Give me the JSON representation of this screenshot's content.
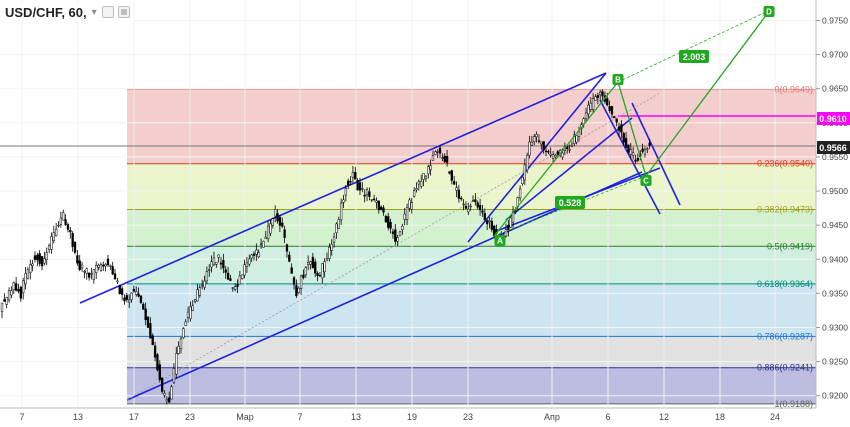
{
  "header": {
    "title": "USD/CHF, 60,",
    "menu_icon": "chevron-down-icon",
    "buttons": [
      "square-icon",
      "box-icon"
    ]
  },
  "colors": {
    "candle": "#000000",
    "channel": "#2020e0",
    "pattern": "#21a821",
    "resistance": "#ff00ff",
    "fib_line": "#999999"
  },
  "chart_data": {
    "type": "candlestick",
    "title": "USD/CHF, 60,",
    "price_axis": {
      "ticks": [
        "0.9750",
        "0.9700",
        "0.9650",
        "0.9600",
        "0.9550",
        "0.9500",
        "0.9450",
        "0.9400",
        "0.9350",
        "0.9300",
        "0.9250",
        "0.9200"
      ],
      "ylim": [
        0.9182,
        0.978
      ]
    },
    "time_axis": {
      "ticks": [
        "7",
        "13",
        "17",
        "23",
        "Мар",
        "7",
        "13",
        "19",
        "23",
        "Апр",
        "6",
        "12",
        "18",
        "24"
      ]
    },
    "current_price": "0.9566",
    "resistance_label": "0.9610",
    "fibonacci": {
      "high": 0.9649,
      "low": 0.9188,
      "levels": [
        {
          "ratio": 0,
          "value": 0.9649,
          "label": "0(0.9649)",
          "color": "#e57373"
        },
        {
          "ratio": 0.236,
          "value": 0.954,
          "label": "0.236(0.9540)",
          "color": "#d84315"
        },
        {
          "ratio": 0.382,
          "value": 0.9473,
          "label": "0.382(0.9473)",
          "color": "#9e9d24"
        },
        {
          "ratio": 0.5,
          "value": 0.9419,
          "label": "0.5(0.9419)",
          "color": "#2e7d32"
        },
        {
          "ratio": 0.618,
          "value": 0.9364,
          "label": "0.618(0.9364)",
          "color": "#00897b"
        },
        {
          "ratio": 0.786,
          "value": 0.9287,
          "label": "0.786(0.9287)",
          "color": "#1976d2"
        },
        {
          "ratio": 0.886,
          "value": 0.9241,
          "label": "0.886(0.9241)",
          "color": "#283593"
        },
        {
          "ratio": 1,
          "value": 0.9188,
          "label": "1(0.9188)",
          "color": "#616161"
        }
      ],
      "zone_colors": [
        "#f2c4c4",
        "#e8f3c3",
        "#cdeec7",
        "#c8ecdb",
        "#c4e1ee",
        "#dcdcdc",
        "#b1b2dc"
      ]
    },
    "series": [
      {
        "x": 0,
        "y": 0.933
      },
      {
        "x": 1,
        "y": 0.9345
      },
      {
        "x": 2,
        "y": 0.936
      },
      {
        "x": 3,
        "y": 0.935
      },
      {
        "x": 4,
        "y": 0.9385
      },
      {
        "x": 5,
        "y": 0.9405
      },
      {
        "x": 6,
        "y": 0.9395
      },
      {
        "x": 7,
        "y": 0.942
      },
      {
        "x": 8,
        "y": 0.945
      },
      {
        "x": 9,
        "y": 0.9465
      },
      {
        "x": 10,
        "y": 0.944
      },
      {
        "x": 11,
        "y": 0.9395
      },
      {
        "x": 12,
        "y": 0.9385
      },
      {
        "x": 13,
        "y": 0.9375
      },
      {
        "x": 14,
        "y": 0.939
      },
      {
        "x": 15,
        "y": 0.9395
      },
      {
        "x": 16,
        "y": 0.9385
      },
      {
        "x": 17,
        "y": 0.935
      },
      {
        "x": 18,
        "y": 0.934
      },
      {
        "x": 19,
        "y": 0.9355
      },
      {
        "x": 20,
        "y": 0.9335
      },
      {
        "x": 21,
        "y": 0.93
      },
      {
        "x": 22,
        "y": 0.926
      },
      {
        "x": 23,
        "y": 0.92
      },
      {
        "x": 24,
        "y": 0.9195
      },
      {
        "x": 25,
        "y": 0.926
      },
      {
        "x": 26,
        "y": 0.93
      },
      {
        "x": 27,
        "y": 0.933
      },
      {
        "x": 28,
        "y": 0.935
      },
      {
        "x": 29,
        "y": 0.937
      },
      {
        "x": 30,
        "y": 0.9395
      },
      {
        "x": 31,
        "y": 0.94
      },
      {
        "x": 32,
        "y": 0.938
      },
      {
        "x": 33,
        "y": 0.9355
      },
      {
        "x": 34,
        "y": 0.937
      },
      {
        "x": 35,
        "y": 0.9395
      },
      {
        "x": 36,
        "y": 0.9405
      },
      {
        "x": 37,
        "y": 0.942
      },
      {
        "x": 38,
        "y": 0.9445
      },
      {
        "x": 39,
        "y": 0.947
      },
      {
        "x": 40,
        "y": 0.9445
      },
      {
        "x": 41,
        "y": 0.939
      },
      {
        "x": 42,
        "y": 0.935
      },
      {
        "x": 43,
        "y": 0.938
      },
      {
        "x": 44,
        "y": 0.94
      },
      {
        "x": 45,
        "y": 0.937
      },
      {
        "x": 46,
        "y": 0.9395
      },
      {
        "x": 47,
        "y": 0.942
      },
      {
        "x": 48,
        "y": 0.946
      },
      {
        "x": 49,
        "y": 0.951
      },
      {
        "x": 50,
        "y": 0.9525
      },
      {
        "x": 51,
        "y": 0.95
      },
      {
        "x": 52,
        "y": 0.9495
      },
      {
        "x": 53,
        "y": 0.9485
      },
      {
        "x": 54,
        "y": 0.947
      },
      {
        "x": 55,
        "y": 0.945
      },
      {
        "x": 56,
        "y": 0.943
      },
      {
        "x": 57,
        "y": 0.9455
      },
      {
        "x": 58,
        "y": 0.948
      },
      {
        "x": 59,
        "y": 0.9505
      },
      {
        "x": 60,
        "y": 0.952
      },
      {
        "x": 61,
        "y": 0.954
      },
      {
        "x": 62,
        "y": 0.956
      },
      {
        "x": 63,
        "y": 0.9545
      },
      {
        "x": 64,
        "y": 0.9515
      },
      {
        "x": 65,
        "y": 0.949
      },
      {
        "x": 66,
        "y": 0.947
      },
      {
        "x": 67,
        "y": 0.9485
      },
      {
        "x": 68,
        "y": 0.947
      },
      {
        "x": 69,
        "y": 0.9455
      },
      {
        "x": 70,
        "y": 0.944
      },
      {
        "x": 71,
        "y": 0.943
      },
      {
        "x": 72,
        "y": 0.945
      },
      {
        "x": 73,
        "y": 0.9475
      },
      {
        "x": 74,
        "y": 0.952
      },
      {
        "x": 75,
        "y": 0.957
      },
      {
        "x": 76,
        "y": 0.958
      },
      {
        "x": 77,
        "y": 0.9565
      },
      {
        "x": 78,
        "y": 0.955
      },
      {
        "x": 79,
        "y": 0.9555
      },
      {
        "x": 80,
        "y": 0.956
      },
      {
        "x": 81,
        "y": 0.957
      },
      {
        "x": 82,
        "y": 0.959
      },
      {
        "x": 83,
        "y": 0.9615
      },
      {
        "x": 84,
        "y": 0.963
      },
      {
        "x": 85,
        "y": 0.964
      },
      {
        "x": 86,
        "y": 0.9625
      },
      {
        "x": 87,
        "y": 0.9605
      },
      {
        "x": 88,
        "y": 0.9585
      },
      {
        "x": 89,
        "y": 0.956
      },
      {
        "x": 90,
        "y": 0.9545
      },
      {
        "x": 91,
        "y": 0.956
      },
      {
        "x": 92,
        "y": 0.957
      }
    ],
    "patterns": {
      "points": [
        {
          "label": "A",
          "value": 0.943
        },
        {
          "label": "B",
          "value": 0.9649
        },
        {
          "label": "C",
          "value": 0.9534
        },
        {
          "label": "D",
          "value": 0.977
        }
      ],
      "ratios": [
        "0.528",
        "2.003"
      ]
    }
  }
}
